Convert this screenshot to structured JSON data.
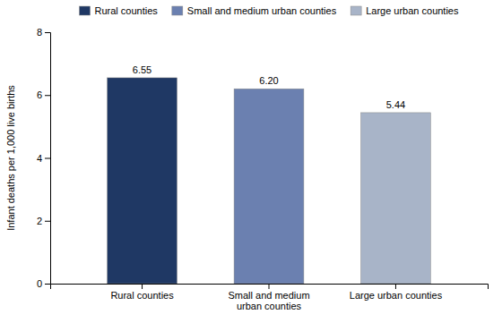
{
  "chart_data": {
    "type": "bar",
    "categories": [
      "Rural counties",
      "Small and medium\nurban counties",
      "Large urban counties"
    ],
    "series": [
      {
        "name": "Rural counties",
        "color": "#1f3864",
        "values": [
          6.55,
          null,
          null
        ],
        "value_labels": [
          "6.55",
          null,
          null
        ]
      },
      {
        "name": "Small and medium urban counties",
        "color": "#6b80b0",
        "values": [
          null,
          6.2,
          null
        ],
        "value_labels": [
          null,
          "6.20",
          null
        ]
      },
      {
        "name": "Large urban counties",
        "color": "#a8b4c8",
        "values": [
          null,
          null,
          5.44
        ],
        "value_labels": [
          null,
          null,
          "5.44"
        ]
      }
    ],
    "stacked": true,
    "y_label": "Infant deaths per 1,000 live births",
    "ylim": [
      0,
      8
    ],
    "yticks": [
      0,
      2,
      4,
      6,
      8
    ],
    "data_labels": true,
    "legend": "top",
    "grid": false
  }
}
